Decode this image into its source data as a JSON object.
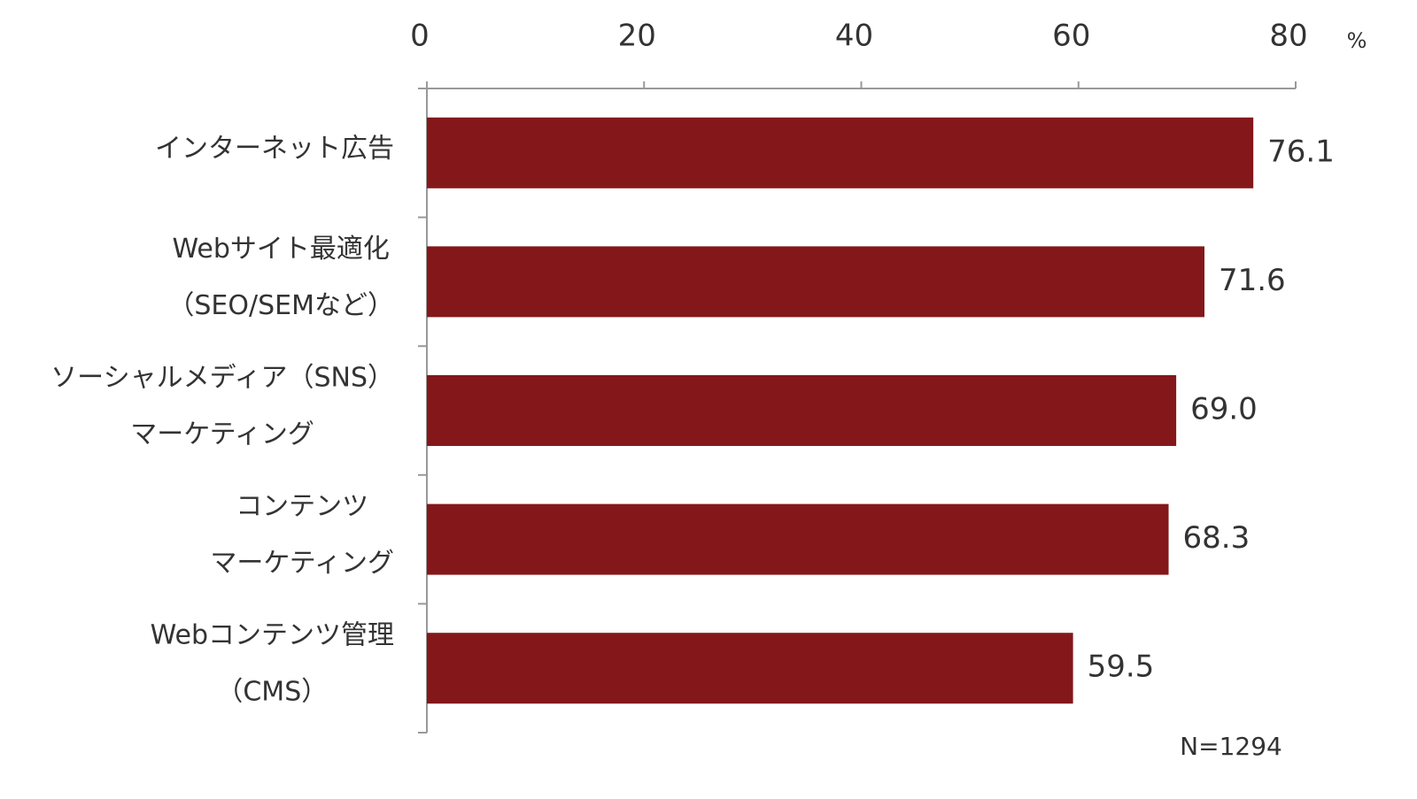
{
  "chart_data": {
    "type": "barh",
    "categories": [
      [
        "インターネット広告"
      ],
      [
        "Webサイト最適化",
        "（SEO/SEMなど）"
      ],
      [
        "ソーシャルメディア（SNS）",
        "マーケティング"
      ],
      [
        "コンテンツ",
        "マーケティング"
      ],
      [
        "Webコンテンツ管理",
        "（CMS）"
      ]
    ],
    "values": [
      76.1,
      71.6,
      69.0,
      68.3,
      59.5
    ],
    "value_labels": [
      "76.1",
      "71.6",
      "69.0",
      "68.3",
      "59.5"
    ],
    "color": "#84171a",
    "xlim": [
      0,
      80
    ],
    "xticks": [
      0,
      20,
      40,
      60,
      80
    ],
    "unit": "%",
    "note": "N=1294"
  }
}
